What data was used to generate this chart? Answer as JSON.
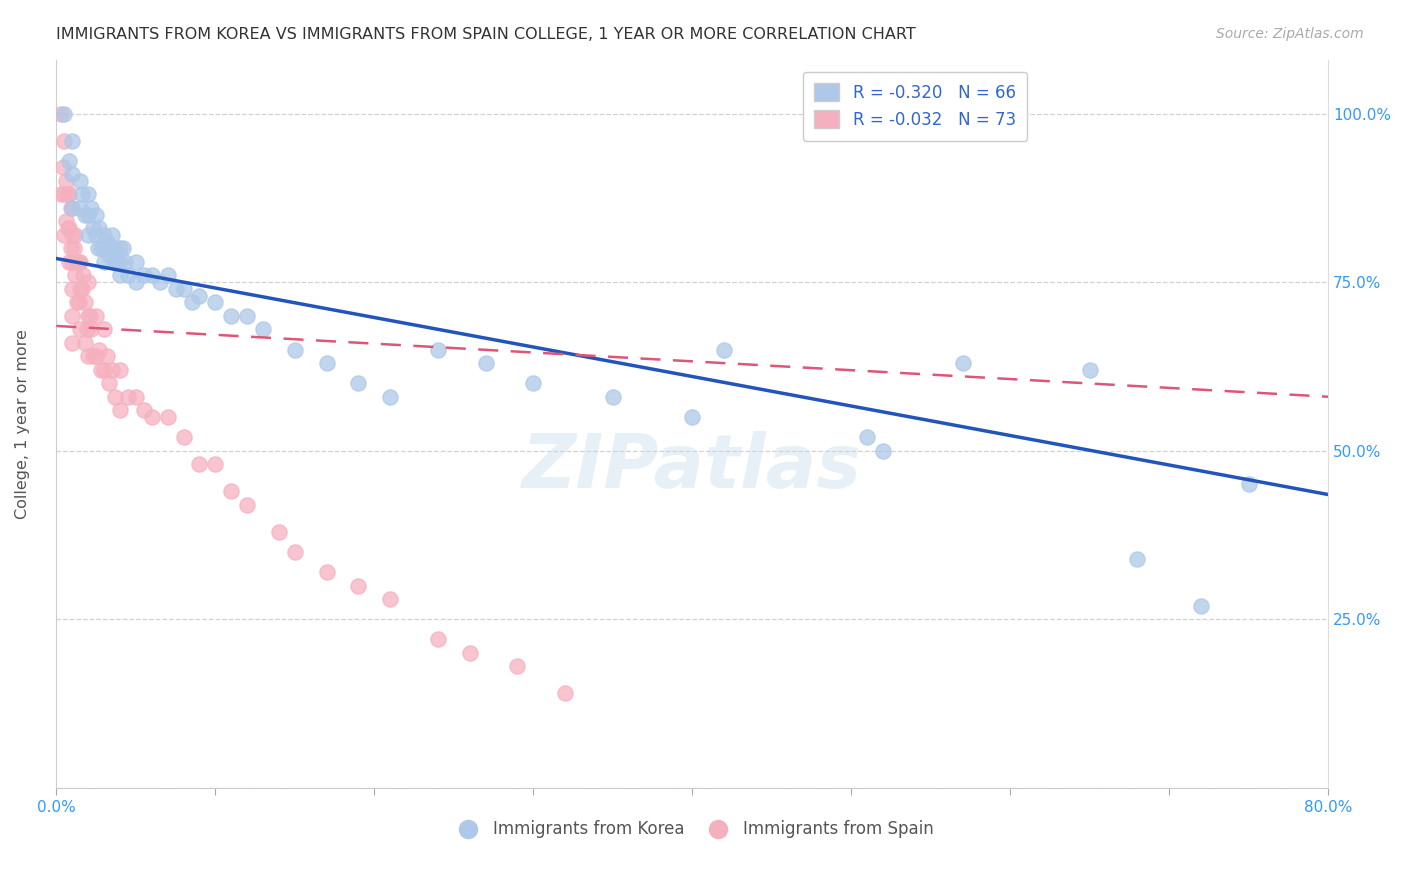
{
  "title": "IMMIGRANTS FROM KOREA VS IMMIGRANTS FROM SPAIN COLLEGE, 1 YEAR OR MORE CORRELATION CHART",
  "source": "Source: ZipAtlas.com",
  "ylabel": "College, 1 year or more",
  "xrange": [
    0.0,
    0.8
  ],
  "yrange": [
    0.0,
    1.08
  ],
  "watermark": "ZIPatlas",
  "korea_R": -0.32,
  "korea_N": 66,
  "spain_R": -0.032,
  "spain_N": 73,
  "korea_color": "#adc8e8",
  "spain_color": "#f5b0c0",
  "korea_line_color": "#2255bb",
  "spain_line_color": "#dd5577",
  "korea_line_x0": 0.0,
  "korea_line_y0": 0.785,
  "korea_line_x1": 0.8,
  "korea_line_y1": 0.435,
  "spain_line_x0": 0.0,
  "spain_line_y0": 0.685,
  "spain_line_x1": 0.8,
  "spain_line_y1": 0.58,
  "korea_x": [
    0.005,
    0.008,
    0.01,
    0.01,
    0.01,
    0.015,
    0.015,
    0.016,
    0.018,
    0.02,
    0.02,
    0.02,
    0.022,
    0.023,
    0.025,
    0.025,
    0.026,
    0.027,
    0.028,
    0.03,
    0.03,
    0.03,
    0.032,
    0.033,
    0.035,
    0.035,
    0.036,
    0.037,
    0.038,
    0.04,
    0.04,
    0.04,
    0.042,
    0.043,
    0.045,
    0.05,
    0.05,
    0.055,
    0.06,
    0.065,
    0.07,
    0.075,
    0.08,
    0.085,
    0.09,
    0.1,
    0.11,
    0.12,
    0.13,
    0.15,
    0.17,
    0.19,
    0.21,
    0.24,
    0.27,
    0.3,
    0.35,
    0.4,
    0.42,
    0.51,
    0.52,
    0.57,
    0.65,
    0.68,
    0.72,
    0.75
  ],
  "korea_y": [
    1.0,
    0.93,
    0.96,
    0.91,
    0.86,
    0.9,
    0.86,
    0.88,
    0.85,
    0.88,
    0.85,
    0.82,
    0.86,
    0.83,
    0.85,
    0.82,
    0.8,
    0.83,
    0.8,
    0.82,
    0.8,
    0.78,
    0.81,
    0.79,
    0.82,
    0.8,
    0.78,
    0.8,
    0.78,
    0.8,
    0.78,
    0.76,
    0.8,
    0.78,
    0.76,
    0.78,
    0.75,
    0.76,
    0.76,
    0.75,
    0.76,
    0.74,
    0.74,
    0.72,
    0.73,
    0.72,
    0.7,
    0.7,
    0.68,
    0.65,
    0.63,
    0.6,
    0.58,
    0.65,
    0.63,
    0.6,
    0.58,
    0.55,
    0.65,
    0.52,
    0.5,
    0.63,
    0.62,
    0.34,
    0.27,
    0.45
  ],
  "spain_x": [
    0.003,
    0.003,
    0.004,
    0.005,
    0.005,
    0.005,
    0.006,
    0.006,
    0.007,
    0.007,
    0.008,
    0.008,
    0.008,
    0.009,
    0.009,
    0.01,
    0.01,
    0.01,
    0.01,
    0.01,
    0.01,
    0.011,
    0.012,
    0.012,
    0.013,
    0.013,
    0.014,
    0.014,
    0.015,
    0.015,
    0.015,
    0.016,
    0.017,
    0.018,
    0.018,
    0.019,
    0.02,
    0.02,
    0.02,
    0.021,
    0.022,
    0.023,
    0.025,
    0.025,
    0.027,
    0.028,
    0.03,
    0.03,
    0.032,
    0.033,
    0.035,
    0.037,
    0.04,
    0.04,
    0.045,
    0.05,
    0.055,
    0.06,
    0.07,
    0.08,
    0.09,
    0.1,
    0.11,
    0.12,
    0.14,
    0.15,
    0.17,
    0.19,
    0.21,
    0.24,
    0.26,
    0.29,
    0.32
  ],
  "spain_y": [
    1.0,
    0.88,
    0.92,
    0.96,
    0.88,
    0.82,
    0.9,
    0.84,
    0.88,
    0.83,
    0.88,
    0.83,
    0.78,
    0.86,
    0.8,
    0.86,
    0.82,
    0.78,
    0.74,
    0.7,
    0.66,
    0.8,
    0.82,
    0.76,
    0.78,
    0.72,
    0.78,
    0.72,
    0.78,
    0.74,
    0.68,
    0.74,
    0.76,
    0.72,
    0.66,
    0.68,
    0.75,
    0.7,
    0.64,
    0.7,
    0.68,
    0.64,
    0.7,
    0.64,
    0.65,
    0.62,
    0.68,
    0.62,
    0.64,
    0.6,
    0.62,
    0.58,
    0.62,
    0.56,
    0.58,
    0.58,
    0.56,
    0.55,
    0.55,
    0.52,
    0.48,
    0.48,
    0.44,
    0.42,
    0.38,
    0.35,
    0.32,
    0.3,
    0.28,
    0.22,
    0.2,
    0.18,
    0.14
  ]
}
